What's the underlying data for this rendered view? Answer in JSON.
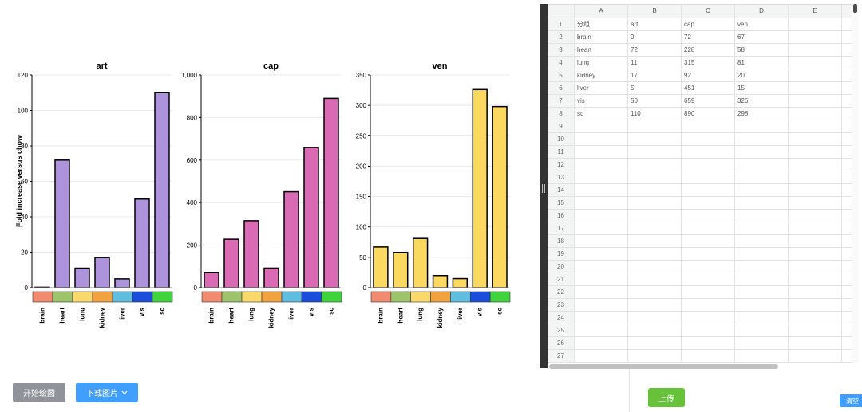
{
  "chart_data": [
    {
      "type": "bar",
      "title": "art",
      "xlabel": "",
      "ylabel": "Fold increase versus chow",
      "categories": [
        "brain",
        "heart",
        "lung",
        "kidney",
        "liver",
        "vis",
        "sc"
      ],
      "values": [
        0,
        72,
        11,
        17,
        5,
        50,
        110
      ],
      "ylim": [
        0,
        120
      ],
      "ytick_values": [
        0,
        20,
        40,
        60,
        80,
        100,
        120
      ],
      "ytick_labels": [
        "0",
        "20",
        "40",
        "60",
        "80",
        "100",
        "120"
      ],
      "grid": true,
      "bar_color": "#ad93db"
    },
    {
      "type": "bar",
      "title": "cap",
      "xlabel": "",
      "ylabel": "",
      "categories": [
        "brain",
        "heart",
        "lung",
        "kidney",
        "liver",
        "vis",
        "sc"
      ],
      "values": [
        72,
        228,
        315,
        92,
        451,
        659,
        890
      ],
      "ylim": [
        0,
        1000
      ],
      "ytick_values": [
        0,
        200,
        400,
        600,
        800,
        1000
      ],
      "ytick_labels": [
        "0",
        "200",
        "400",
        "600",
        "800",
        "1,000"
      ],
      "grid": true,
      "bar_color": "#d96ab3"
    },
    {
      "type": "bar",
      "title": "ven",
      "xlabel": "",
      "ylabel": "",
      "categories": [
        "brain",
        "heart",
        "lung",
        "kidney",
        "liver",
        "vis",
        "sc"
      ],
      "values": [
        67,
        58,
        81,
        20,
        15,
        326,
        298
      ],
      "ylim": [
        0,
        350
      ],
      "ytick_values": [
        0,
        50,
        100,
        150,
        200,
        250,
        300,
        350
      ],
      "ytick_labels": [
        "0",
        "50",
        "100",
        "150",
        "200",
        "250",
        "300",
        "350"
      ],
      "grid": true,
      "bar_color": "#fbd860"
    }
  ],
  "category_colors": [
    "#f28a6f",
    "#9dc46a",
    "#fad96b",
    "#f3a240",
    "#5fbde0",
    "#1a4ddb",
    "#3fd43c"
  ],
  "sheet": {
    "columns": [
      "A",
      "B",
      "C",
      "D",
      "E"
    ],
    "row_labels": [
      "1",
      "2",
      "3",
      "4",
      "5",
      "6",
      "7",
      "8",
      "9",
      "10",
      "11",
      "12",
      "13",
      "14",
      "15",
      "16",
      "17",
      "18",
      "19",
      "20",
      "21",
      "22",
      "23",
      "24",
      "25",
      "26",
      "27"
    ],
    "rows": [
      [
        "分组",
        "art",
        "cap",
        "ven"
      ],
      [
        "brain",
        "0",
        "72",
        "67"
      ],
      [
        "heart",
        "72",
        "228",
        "58"
      ],
      [
        "lung",
        "11",
        "315",
        "81"
      ],
      [
        "kidney",
        "17",
        "92",
        "20"
      ],
      [
        "liver",
        "5",
        "451",
        "15"
      ],
      [
        "vis",
        "50",
        "659",
        "326"
      ],
      [
        "sc",
        "110",
        "890",
        "298"
      ]
    ]
  },
  "controls": {
    "draw_label": "开始绘图",
    "download_label": "下载图片",
    "download_icon": "chevron-down-icon",
    "upload_label": "上传",
    "clear_label": "清空"
  },
  "colors": {
    "primary": "#409eff",
    "success": "#67c23a",
    "info": "#909399",
    "splitter": "#333333"
  }
}
